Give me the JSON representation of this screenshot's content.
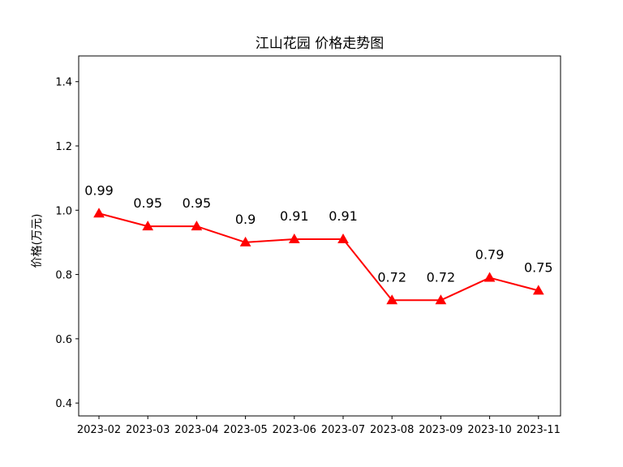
{
  "chart_data": {
    "type": "line",
    "title": "江山花园 价格走势图",
    "xlabel": "",
    "ylabel": "价格(万元)",
    "categories": [
      "2023-02",
      "2023-03",
      "2023-04",
      "2023-05",
      "2023-06",
      "2023-07",
      "2023-08",
      "2023-09",
      "2023-10",
      "2023-11"
    ],
    "series": [
      {
        "values": [
          0.99,
          0.95,
          0.95,
          0.9,
          0.91,
          0.91,
          0.72,
          0.72,
          0.79,
          0.75
        ],
        "data_labels": [
          "0.99",
          "0.95",
          "0.95",
          "0.9",
          "0.91",
          "0.91",
          "0.72",
          "0.72",
          "0.79",
          "0.75"
        ],
        "color": "#ff0000",
        "marker": "triangle-up"
      }
    ],
    "ylim": [
      0.36,
      1.48
    ],
    "yticks": [
      0.4,
      0.6,
      0.8,
      1.0,
      1.2,
      1.4
    ],
    "ytick_labels": [
      "0.4",
      "0.6",
      "0.8",
      "1.0",
      "1.2",
      "1.4"
    ],
    "grid": false,
    "legend": "none"
  }
}
